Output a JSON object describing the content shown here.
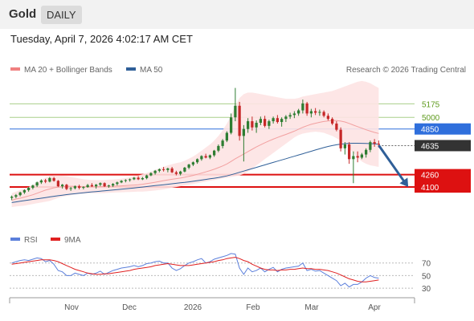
{
  "header": {
    "symbol": "Gold",
    "period": "DAILY",
    "datetime": "Tuesday, April 7, 2026 4:02:17 AM CET",
    "copyright": "Research © 2026 Trading Central"
  },
  "legend": {
    "main": [
      {
        "label": "MA 20 + Bollinger Bands",
        "color": "#f08080"
      },
      {
        "label": "MA 50",
        "color": "#2f5f98"
      }
    ],
    "rsi": [
      {
        "label": "RSI",
        "color": "#5b7fdb"
      },
      {
        "label": "9MA",
        "color": "#e02020"
      }
    ]
  },
  "colors": {
    "up": "#2e7d32",
    "down": "#c62828",
    "band_fill": "#fde3e3",
    "ma20": "#f2a0a0",
    "ma50": "#2f5f98",
    "resistance_green": "#a9cf8a",
    "pivot_blue": "#2f6fdc",
    "support_red": "#dd1111",
    "current_price": "#333333",
    "arrow": "#2f5f98"
  },
  "chart_data": [
    {
      "type": "candlestick",
      "title": "Gold",
      "x_axis": {
        "labels": [
          "Nov",
          "Dec",
          "2026",
          "Feb",
          "Mar",
          "Apr"
        ]
      },
      "y_range": [
        3800,
        5500
      ],
      "candles_ohlc": [
        [
          3960,
          3990,
          3930,
          3975
        ],
        [
          3975,
          4010,
          3955,
          3995
        ],
        [
          3995,
          4040,
          3980,
          4030
        ],
        [
          4030,
          4070,
          4010,
          4060
        ],
        [
          4060,
          4100,
          4040,
          4090
        ],
        [
          4090,
          4130,
          4070,
          4120
        ],
        [
          4120,
          4170,
          4100,
          4160
        ],
        [
          4160,
          4200,
          4140,
          4185
        ],
        [
          4185,
          4205,
          4150,
          4170
        ],
        [
          4170,
          4230,
          4160,
          4215
        ],
        [
          4215,
          4230,
          4170,
          4180
        ],
        [
          4180,
          4190,
          4100,
          4110
        ],
        [
          4110,
          4140,
          4080,
          4130
        ],
        [
          4130,
          4140,
          4060,
          4075
        ],
        [
          4075,
          4100,
          4050,
          4085
        ],
        [
          4085,
          4120,
          4070,
          4110
        ],
        [
          4110,
          4130,
          4070,
          4090
        ],
        [
          4090,
          4110,
          4070,
          4100
        ],
        [
          4100,
          4140,
          4090,
          4125
        ],
        [
          4125,
          4150,
          4100,
          4110
        ],
        [
          4110,
          4140,
          4080,
          4130
        ],
        [
          4130,
          4160,
          4110,
          4150
        ],
        [
          4150,
          4160,
          4100,
          4110
        ],
        [
          4110,
          4130,
          4090,
          4120
        ],
        [
          4120,
          4150,
          4100,
          4140
        ],
        [
          4140,
          4170,
          4120,
          4160
        ],
        [
          4160,
          4190,
          4150,
          4180
        ],
        [
          4180,
          4200,
          4160,
          4190
        ],
        [
          4190,
          4210,
          4170,
          4200
        ],
        [
          4200,
          4230,
          4190,
          4220
        ],
        [
          4220,
          4240,
          4190,
          4200
        ],
        [
          4200,
          4230,
          4190,
          4215
        ],
        [
          4215,
          4260,
          4200,
          4250
        ],
        [
          4250,
          4290,
          4240,
          4280
        ],
        [
          4280,
          4320,
          4260,
          4310
        ],
        [
          4310,
          4340,
          4290,
          4330
        ],
        [
          4330,
          4360,
          4300,
          4320
        ],
        [
          4320,
          4350,
          4290,
          4340
        ],
        [
          4340,
          4360,
          4280,
          4290
        ],
        [
          4290,
          4310,
          4250,
          4270
        ],
        [
          4270,
          4310,
          4250,
          4300
        ],
        [
          4300,
          4360,
          4290,
          4350
        ],
        [
          4350,
          4400,
          4330,
          4390
        ],
        [
          4390,
          4430,
          4370,
          4420
        ],
        [
          4420,
          4470,
          4400,
          4460
        ],
        [
          4460,
          4510,
          4440,
          4500
        ],
        [
          4500,
          4530,
          4470,
          4480
        ],
        [
          4480,
          4520,
          4460,
          4510
        ],
        [
          4510,
          4580,
          4490,
          4570
        ],
        [
          4570,
          4650,
          4550,
          4630
        ],
        [
          4630,
          4720,
          4600,
          4700
        ],
        [
          4700,
          4820,
          4680,
          4800
        ],
        [
          4800,
          5050,
          4780,
          5000
        ],
        [
          5000,
          5380,
          4950,
          5150
        ],
        [
          5150,
          5200,
          4700,
          4760
        ],
        [
          4760,
          4900,
          4430,
          4850
        ],
        [
          4850,
          4990,
          4800,
          4950
        ],
        [
          4950,
          5010,
          4830,
          4870
        ],
        [
          4870,
          4960,
          4800,
          4930
        ],
        [
          4930,
          5010,
          4900,
          4980
        ],
        [
          4980,
          5020,
          4870,
          4890
        ],
        [
          4890,
          4970,
          4850,
          4950
        ],
        [
          4950,
          5010,
          4920,
          4990
        ],
        [
          4990,
          5030,
          4920,
          4940
        ],
        [
          4940,
          5000,
          4880,
          4980
        ],
        [
          4980,
          5030,
          4940,
          5010
        ],
        [
          5010,
          5060,
          4980,
          5030
        ],
        [
          5030,
          5080,
          4990,
          5050
        ],
        [
          5050,
          5110,
          5020,
          5090
        ],
        [
          5090,
          5230,
          5050,
          5180
        ],
        [
          5180,
          5200,
          5020,
          5050
        ],
        [
          5050,
          5110,
          5000,
          5080
        ],
        [
          5080,
          5120,
          5030,
          5060
        ],
        [
          5060,
          5100,
          5020,
          5070
        ],
        [
          5070,
          5090,
          5000,
          5020
        ],
        [
          5020,
          5050,
          4960,
          4980
        ],
        [
          4980,
          5000,
          4900,
          4920
        ],
        [
          4920,
          4950,
          4820,
          4840
        ],
        [
          4840,
          4870,
          4560,
          4600
        ],
        [
          4600,
          4680,
          4520,
          4650
        ],
        [
          4650,
          4680,
          4400,
          4460
        ],
        [
          4460,
          4560,
          4150,
          4500
        ],
        [
          4500,
          4560,
          4420,
          4480
        ],
        [
          4480,
          4540,
          4460,
          4520
        ],
        [
          4520,
          4600,
          4480,
          4580
        ],
        [
          4580,
          4700,
          4550,
          4680
        ],
        [
          4680,
          4720,
          4620,
          4660
        ],
        [
          4660,
          4700,
          4610,
          4650
        ]
      ],
      "ma20": [
        3930,
        3945,
        3955,
        3970,
        3985,
        4000,
        4020,
        4040,
        4060,
        4075,
        4090,
        4100,
        4105,
        4108,
        4110,
        4110,
        4108,
        4106,
        4104,
        4103,
        4103,
        4104,
        4106,
        4108,
        4110,
        4112,
        4115,
        4118,
        4122,
        4126,
        4130,
        4136,
        4144,
        4152,
        4162,
        4172,
        4182,
        4192,
        4200,
        4208,
        4216,
        4226,
        4238,
        4250,
        4264,
        4280,
        4296,
        4312,
        4330,
        4350,
        4372,
        4398,
        4430,
        4466,
        4496,
        4526,
        4558,
        4588,
        4618,
        4646,
        4672,
        4696,
        4718,
        4740,
        4760,
        4780,
        4800,
        4822,
        4846,
        4872,
        4892,
        4910,
        4924,
        4936,
        4946,
        4954,
        4958,
        4958,
        4952,
        4940,
        4922,
        4900,
        4880,
        4860,
        4840,
        4822,
        4806,
        4792
      ],
      "ma50": [
        3900,
        3908,
        3916,
        3924,
        3932,
        3940,
        3948,
        3956,
        3964,
        3972,
        3980,
        3988,
        3995,
        4002,
        4008,
        4014,
        4020,
        4026,
        4032,
        4037,
        4042,
        4047,
        4052,
        4057,
        4062,
        4067,
        4072,
        4077,
        4082,
        4088,
        4094,
        4100,
        4106,
        4112,
        4118,
        4124,
        4130,
        4136,
        4142,
        4148,
        4154,
        4160,
        4167,
        4174,
        4182,
        4190,
        4198,
        4206,
        4214,
        4222,
        4232,
        4244,
        4258,
        4274,
        4290,
        4306,
        4322,
        4338,
        4354,
        4370,
        4386,
        4402,
        4418,
        4434,
        4450,
        4466,
        4482,
        4498,
        4514,
        4530,
        4546,
        4562,
        4578,
        4594,
        4610,
        4624,
        4636,
        4646,
        4654,
        4660,
        4664,
        4666,
        4666,
        4665,
        4663,
        4660,
        4657,
        4654
      ],
      "bollinger_upper": [
        4020,
        4040,
        4060,
        4080,
        4100,
        4130,
        4160,
        4190,
        4220,
        4240,
        4250,
        4250,
        4245,
        4240,
        4230,
        4220,
        4210,
        4200,
        4195,
        4192,
        4190,
        4190,
        4192,
        4195,
        4198,
        4202,
        4208,
        4216,
        4226,
        4238,
        4250,
        4265,
        4282,
        4300,
        4320,
        4340,
        4360,
        4380,
        4395,
        4408,
        4420,
        4440,
        4465,
        4495,
        4530,
        4570,
        4610,
        4650,
        4700,
        4760,
        4830,
        4920,
        5020,
        5150,
        5250,
        5300,
        5320,
        5320,
        5310,
        5300,
        5290,
        5280,
        5270,
        5260,
        5250,
        5240,
        5240,
        5240,
        5250,
        5270,
        5280,
        5290,
        5300,
        5310,
        5320,
        5330,
        5340,
        5360,
        5380,
        5400,
        5420,
        5440,
        5460,
        5470,
        5460,
        5440,
        5410,
        5380
      ],
      "bollinger_lower": [
        3840,
        3850,
        3855,
        3860,
        3870,
        3880,
        3890,
        3900,
        3910,
        3920,
        3940,
        3960,
        3975,
        3985,
        3995,
        4005,
        4010,
        4015,
        4018,
        4020,
        4020,
        4020,
        4022,
        4025,
        4028,
        4030,
        4032,
        4034,
        4036,
        4038,
        4040,
        4042,
        4045,
        4050,
        4055,
        4062,
        4070,
        4080,
        4090,
        4100,
        4110,
        4120,
        4130,
        4140,
        4150,
        4160,
        4170,
        4180,
        4190,
        4200,
        4210,
        4220,
        4230,
        4240,
        4250,
        4270,
        4300,
        4340,
        4380,
        4420,
        4460,
        4500,
        4540,
        4580,
        4620,
        4660,
        4700,
        4740,
        4770,
        4790,
        4800,
        4810,
        4815,
        4810,
        4800,
        4780,
        4760,
        4730,
        4700,
        4650,
        4600,
        4540,
        4480,
        4430,
        4400,
        4380,
        4370,
        4360
      ],
      "levels": [
        {
          "label": "5175",
          "value": 5175,
          "type": "resistance"
        },
        {
          "label": "5000",
          "value": 5000,
          "type": "resistance"
        },
        {
          "label": "4850",
          "value": 4850,
          "type": "pivot"
        },
        {
          "label": "4635",
          "value": 4635,
          "type": "current"
        },
        {
          "label": "4260",
          "value": 4260,
          "type": "support"
        },
        {
          "label": "4100",
          "value": 4100,
          "type": "support"
        }
      ],
      "arrow": {
        "from_index": 87,
        "from_value": 4640,
        "to_index": 94,
        "to_value": 4100
      },
      "future_bars": 8
    },
    {
      "type": "line",
      "title": "RSI",
      "y_range": [
        20,
        90
      ],
      "y_ticks": [
        70,
        50,
        30
      ],
      "series": [
        {
          "name": "RSI",
          "values": [
            70,
            72,
            74,
            75,
            74,
            76,
            78,
            77,
            72,
            74,
            68,
            58,
            56,
            50,
            50,
            54,
            52,
            50,
            54,
            52,
            54,
            57,
            52,
            55,
            58,
            60,
            62,
            63,
            64,
            66,
            64,
            66,
            69,
            70,
            72,
            73,
            70,
            70,
            62,
            58,
            61,
            66,
            70,
            72,
            75,
            77,
            70,
            72,
            76,
            78,
            80,
            82,
            85,
            84,
            62,
            52,
            62,
            56,
            58,
            62,
            56,
            60,
            63,
            56,
            60,
            62,
            63,
            64,
            65,
            70,
            58,
            60,
            57,
            58,
            54,
            50,
            46,
            42,
            34,
            38,
            32,
            36,
            36,
            40,
            46,
            50,
            47,
            46
          ]
        },
        {
          "name": "9MA",
          "values": [
            68,
            69,
            70,
            71,
            72,
            73,
            74,
            75,
            75,
            75,
            74,
            72,
            69,
            66,
            63,
            60,
            58,
            56,
            54,
            53,
            52,
            52,
            53,
            53,
            54,
            55,
            56,
            57,
            58,
            60,
            61,
            62,
            63,
            64,
            66,
            67,
            68,
            69,
            68,
            67,
            66,
            66,
            66,
            67,
            68,
            69,
            70,
            71,
            72,
            74,
            75,
            77,
            78,
            79,
            77,
            74,
            72,
            68,
            65,
            62,
            60,
            59,
            59,
            58,
            59,
            59,
            60,
            60,
            61,
            62,
            61,
            61,
            60,
            60,
            59,
            58,
            56,
            54,
            51,
            48,
            45,
            43,
            41,
            40,
            40,
            41,
            42,
            43
          ]
        }
      ]
    }
  ]
}
